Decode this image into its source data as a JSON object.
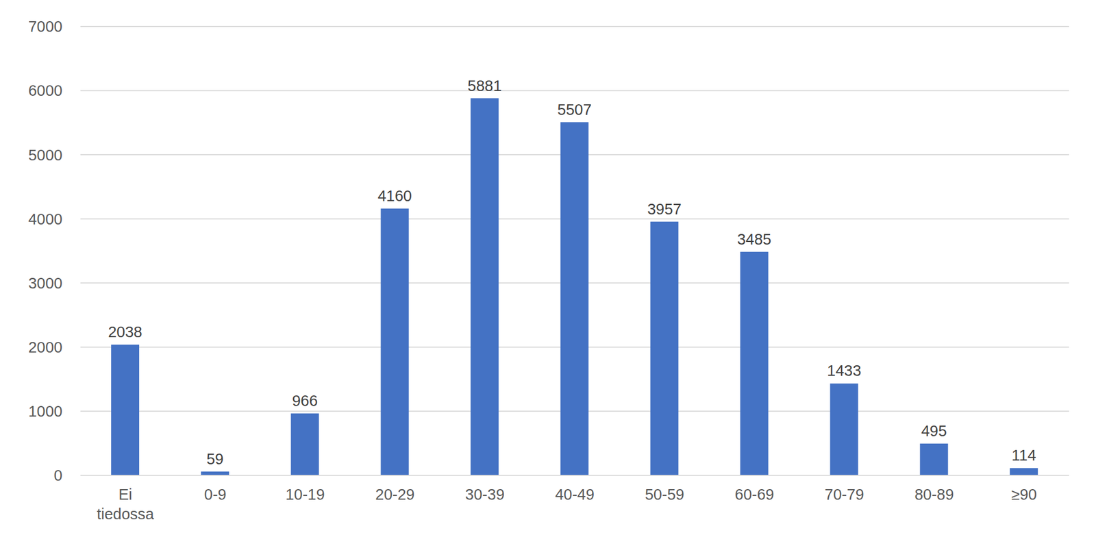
{
  "chart_data": {
    "type": "bar",
    "categories": [
      "Ei tiedossa",
      "0-9",
      "10-19",
      "20-29",
      "30-39",
      "40-49",
      "50-59",
      "60-69",
      "70-79",
      "80-89",
      "≥90"
    ],
    "values": [
      2038,
      59,
      966,
      4160,
      5881,
      5507,
      3957,
      3485,
      1433,
      495,
      114
    ],
    "color": "#4472c4",
    "ylim": [
      0,
      7000
    ],
    "yticks": [
      0,
      1000,
      2000,
      3000,
      4000,
      5000,
      6000,
      7000
    ],
    "grid": true,
    "data_labels": true
  }
}
